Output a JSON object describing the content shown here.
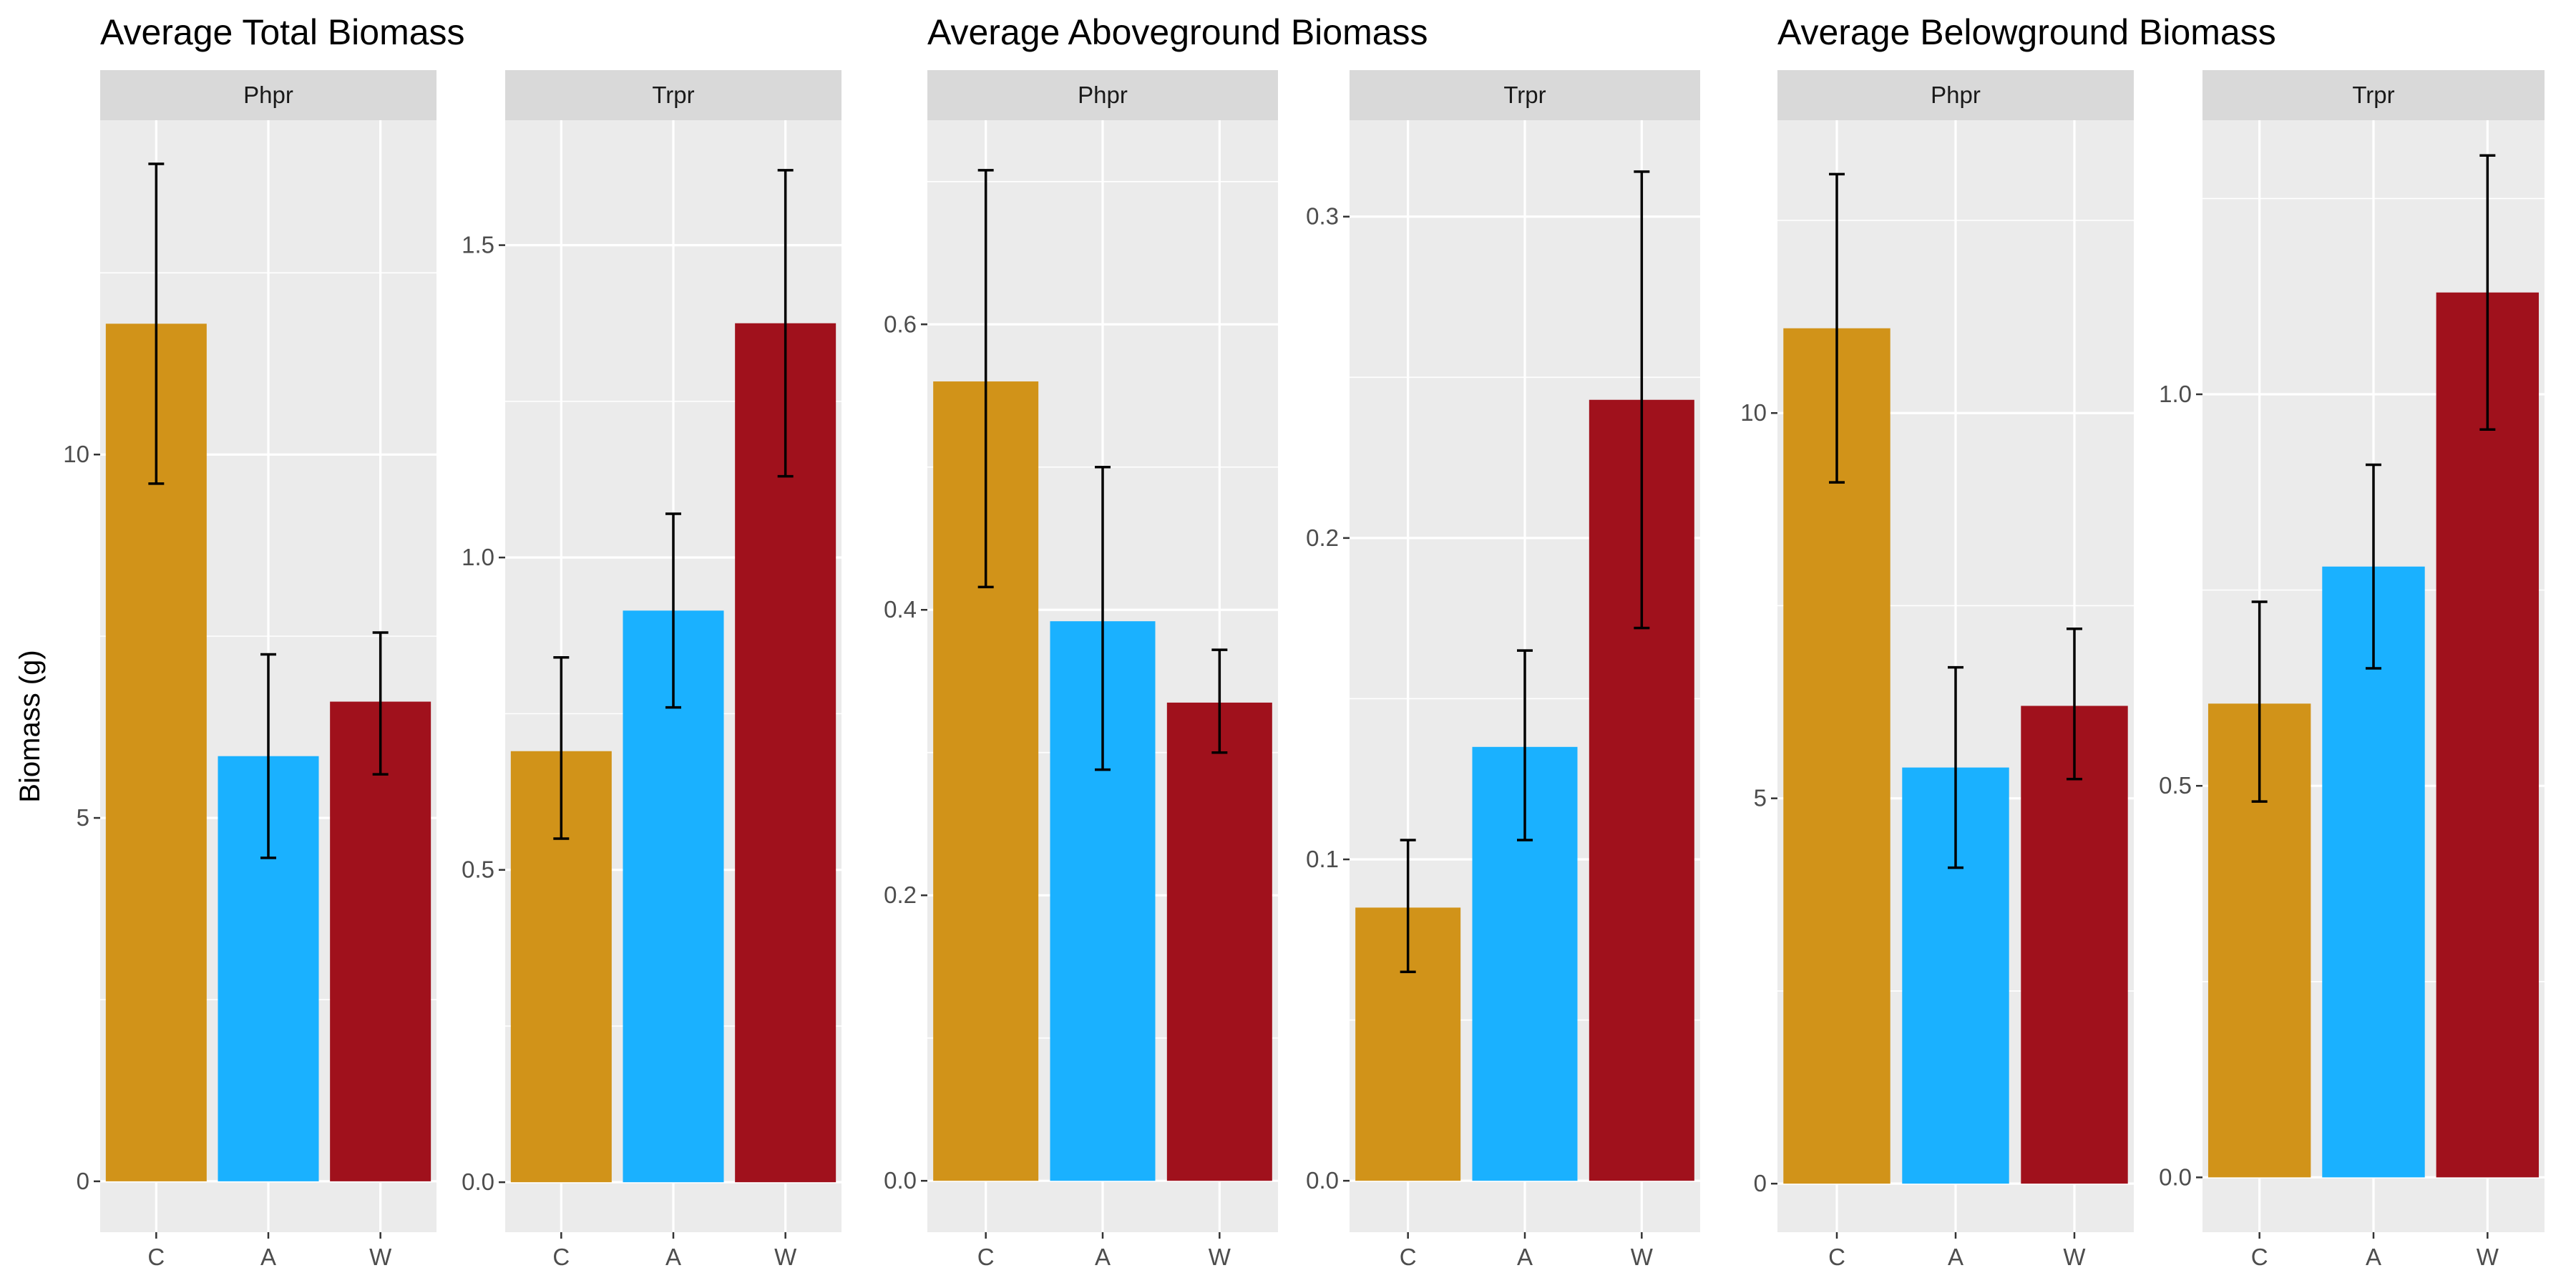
{
  "ylabel": "Biomass (g)",
  "categories": [
    "C",
    "A",
    "W"
  ],
  "colors": {
    "C": "#d19319",
    "A": "#1ab1ff",
    "W": "#a0111c"
  },
  "chart_data": [
    {
      "type": "bar",
      "title": "Average Total Biomass",
      "ylabel": "Biomass (g)",
      "facets": [
        {
          "strip": "Phpr",
          "categories": [
            "C",
            "A",
            "W"
          ],
          "values": [
            11.8,
            5.85,
            6.6
          ],
          "error_low": [
            9.6,
            4.45,
            5.6
          ],
          "error_high": [
            14.0,
            7.25,
            7.55
          ],
          "yticks": [
            0,
            5,
            10
          ],
          "ylim": [
            -0.7,
            14.6
          ]
        },
        {
          "strip": "Trpr",
          "categories": [
            "C",
            "A",
            "W"
          ],
          "values": [
            0.69,
            0.915,
            1.375
          ],
          "error_low": [
            0.55,
            0.76,
            1.13
          ],
          "error_high": [
            0.84,
            1.07,
            1.62
          ],
          "yticks": [
            0.0,
            0.5,
            1.0,
            1.5
          ],
          "ylim": [
            -0.08,
            1.7
          ]
        }
      ]
    },
    {
      "type": "bar",
      "title": "Average Aboveground Biomass",
      "facets": [
        {
          "strip": "Phpr",
          "categories": [
            "C",
            "A",
            "W"
          ],
          "values": [
            0.56,
            0.392,
            0.335
          ],
          "error_low": [
            0.416,
            0.288,
            0.3
          ],
          "error_high": [
            0.708,
            0.5,
            0.372
          ],
          "yticks": [
            0.0,
            0.2,
            0.4,
            0.6
          ],
          "ylim": [
            -0.036,
            0.743
          ]
        },
        {
          "strip": "Trpr",
          "categories": [
            "C",
            "A",
            "W"
          ],
          "values": [
            0.085,
            0.135,
            0.243
          ],
          "error_low": [
            0.065,
            0.106,
            0.172
          ],
          "error_high": [
            0.106,
            0.165,
            0.314
          ],
          "yticks": [
            0.0,
            0.1,
            0.2,
            0.3
          ],
          "ylim": [
            -0.016,
            0.33
          ]
        }
      ]
    },
    {
      "type": "bar",
      "title": "Average Belowground Biomass",
      "facets": [
        {
          "strip": "Phpr",
          "categories": [
            "C",
            "A",
            "W"
          ],
          "values": [
            11.1,
            5.4,
            6.2
          ],
          "error_low": [
            9.1,
            4.1,
            5.25
          ],
          "error_high": [
            13.1,
            6.7,
            7.2
          ],
          "yticks": [
            0,
            5,
            10
          ],
          "ylim": [
            -0.63,
            13.8
          ]
        },
        {
          "strip": "Trpr",
          "categories": [
            "C",
            "A",
            "W"
          ],
          "values": [
            0.605,
            0.78,
            1.13
          ],
          "error_low": [
            0.48,
            0.65,
            0.955
          ],
          "error_high": [
            0.735,
            0.91,
            1.305
          ],
          "yticks": [
            0.0,
            0.5,
            1.0
          ],
          "ylim": [
            -0.07,
            1.35
          ]
        }
      ]
    }
  ]
}
